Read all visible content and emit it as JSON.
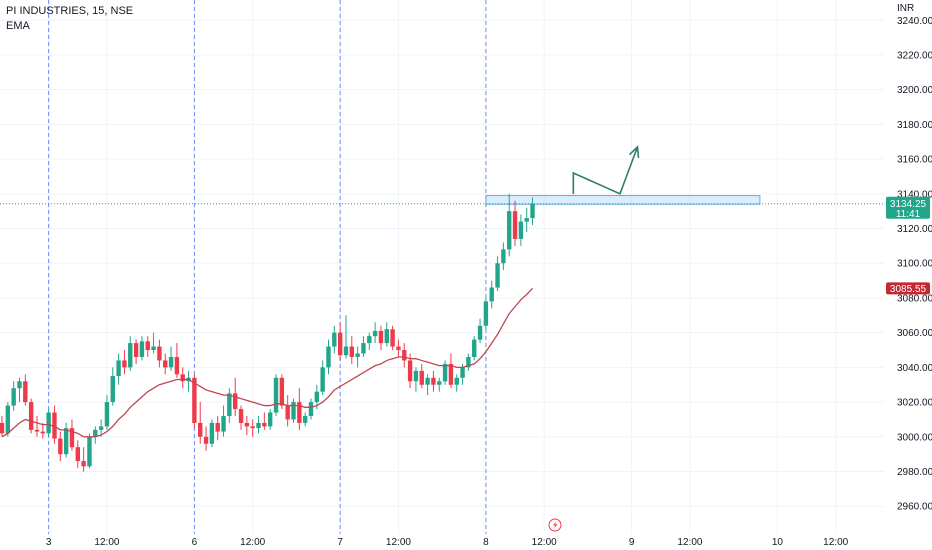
{
  "legend": {
    "title": "PI INDUSTRIES, 15, NSE",
    "indicator": "EMA"
  },
  "colors": {
    "up": "#22a68b",
    "down": "#ef3a4c",
    "ema": "#c2464f",
    "grid": "#f0f3fa",
    "session": "#2962ff",
    "zone_fill": "#bbdefb",
    "zone_border": "#64a8f0",
    "arrow": "#2f7d6b",
    "last_price_bg": "#22a68b",
    "ema_label_bg": "#c62832"
  },
  "chart_data": {
    "type": "candlestick",
    "title": "PI INDUSTRIES, 15, NSE",
    "currency": "INR",
    "ylim": [
      2944,
      3250
    ],
    "y_ticks": [
      3240,
      3220,
      3200,
      3180,
      3160,
      3140,
      3120,
      3100,
      3080,
      3060,
      3040,
      3020,
      3000,
      2980,
      2960
    ],
    "y_tick_labels": [
      "3240.00",
      "3220.00",
      "3200.00",
      "3180.00",
      "3160.00",
      "3140.00",
      "3120.00",
      "3100.00",
      "3080.00",
      "3060.00",
      "3040.00",
      "3020.00",
      "3000.00",
      "2980.00",
      "2960.00"
    ],
    "x_ticks": [
      {
        "label": "3",
        "index": 8,
        "session": true
      },
      {
        "label": "12:00",
        "index": 18,
        "session": false
      },
      {
        "label": "6",
        "index": 33,
        "session": true
      },
      {
        "label": "12:00",
        "index": 43,
        "session": false
      },
      {
        "label": "7",
        "index": 58,
        "session": true
      },
      {
        "label": "12:00",
        "index": 68,
        "session": false
      },
      {
        "label": "8",
        "index": 83,
        "session": true
      },
      {
        "label": "12:00",
        "index": 93,
        "session": false
      },
      {
        "label": "9",
        "index": 108,
        "session": false
      },
      {
        "label": "12:00",
        "index": 118,
        "session": false
      },
      {
        "label": "10",
        "index": 133,
        "session": false
      },
      {
        "label": "12:00",
        "index": 143,
        "session": false
      }
    ],
    "candles": [
      [
        3008,
        3012,
        3000,
        3002
      ],
      [
        3002,
        3020,
        3000,
        3018
      ],
      [
        3018,
        3032,
        3015,
        3028
      ],
      [
        3028,
        3034,
        3020,
        3032
      ],
      [
        3032,
        3036,
        3018,
        3020
      ],
      [
        3020,
        3022,
        3002,
        3004
      ],
      [
        3004,
        3012,
        3000,
        3003
      ],
      [
        3003,
        3008,
        2999,
        3002
      ],
      [
        3002,
        3016,
        3000,
        3014
      ],
      [
        3014,
        3018,
        2996,
        2999
      ],
      [
        2999,
        3003,
        2986,
        2990
      ],
      [
        2990,
        3008,
        2988,
        3005
      ],
      [
        3005,
        3010,
        2992,
        2994
      ],
      [
        2994,
        2998,
        2982,
        2986
      ],
      [
        2986,
        2994,
        2980,
        2983
      ],
      [
        2983,
        3002,
        2982,
        3000
      ],
      [
        3000,
        3006,
        2996,
        3004
      ],
      [
        3004,
        3010,
        3000,
        3006
      ],
      [
        3006,
        3024,
        3004,
        3020
      ],
      [
        3020,
        3040,
        3018,
        3035
      ],
      [
        3035,
        3048,
        3030,
        3044
      ],
      [
        3044,
        3050,
        3036,
        3040
      ],
      [
        3040,
        3058,
        3038,
        3054
      ],
      [
        3054,
        3056,
        3042,
        3046
      ],
      [
        3046,
        3058,
        3044,
        3055
      ],
      [
        3055,
        3058,
        3046,
        3050
      ],
      [
        3050,
        3060,
        3048,
        3052
      ],
      [
        3052,
        3056,
        3040,
        3044
      ],
      [
        3044,
        3048,
        3036,
        3040
      ],
      [
        3040,
        3052,
        3038,
        3046
      ],
      [
        3046,
        3054,
        3034,
        3036
      ],
      [
        3036,
        3040,
        3028,
        3032
      ],
      [
        3032,
        3038,
        3026,
        3034
      ],
      [
        3034,
        3036,
        3005,
        3008
      ],
      [
        3008,
        3020,
        2996,
        3000
      ],
      [
        3000,
        3006,
        2992,
        2996
      ],
      [
        2996,
        3010,
        2994,
        3008
      ],
      [
        3008,
        3012,
        2998,
        3003
      ],
      [
        3003,
        3018,
        3000,
        3012
      ],
      [
        3012,
        3028,
        3008,
        3025
      ],
      [
        3025,
        3034,
        3012,
        3016
      ],
      [
        3016,
        3018,
        3004,
        3008
      ],
      [
        3008,
        3012,
        3001,
        3006
      ],
      [
        3006,
        3010,
        3000,
        3005
      ],
      [
        3005,
        3012,
        3002,
        3008
      ],
      [
        3008,
        3014,
        3004,
        3006
      ],
      [
        3006,
        3016,
        3004,
        3014
      ],
      [
        3014,
        3036,
        3012,
        3034
      ],
      [
        3034,
        3036,
        3016,
        3018
      ],
      [
        3018,
        3024,
        3006,
        3010
      ],
      [
        3010,
        3022,
        3008,
        3020
      ],
      [
        3020,
        3028,
        3004,
        3008
      ],
      [
        3008,
        3014,
        3006,
        3012
      ],
      [
        3012,
        3022,
        3010,
        3020
      ],
      [
        3020,
        3030,
        3016,
        3026
      ],
      [
        3026,
        3044,
        3024,
        3040
      ],
      [
        3040,
        3056,
        3036,
        3052
      ],
      [
        3052,
        3064,
        3048,
        3060
      ],
      [
        3060,
        3066,
        3044,
        3047
      ],
      [
        3047,
        3070,
        3045,
        3052
      ],
      [
        3052,
        3058,
        3042,
        3046
      ],
      [
        3046,
        3052,
        3040,
        3048
      ],
      [
        3048,
        3058,
        3046,
        3054
      ],
      [
        3054,
        3060,
        3050,
        3058
      ],
      [
        3058,
        3066,
        3054,
        3061
      ],
      [
        3061,
        3064,
        3050,
        3054
      ],
      [
        3054,
        3066,
        3052,
        3062
      ],
      [
        3062,
        3064,
        3050,
        3052
      ],
      [
        3052,
        3056,
        3046,
        3050
      ],
      [
        3050,
        3054,
        3040,
        3044
      ],
      [
        3044,
        3048,
        3028,
        3032
      ],
      [
        3032,
        3040,
        3026,
        3038
      ],
      [
        3038,
        3042,
        3028,
        3030
      ],
      [
        3030,
        3036,
        3024,
        3034
      ],
      [
        3034,
        3038,
        3026,
        3030
      ],
      [
        3030,
        3034,
        3026,
        3032
      ],
      [
        3032,
        3044,
        3030,
        3042
      ],
      [
        3042,
        3048,
        3028,
        3030
      ],
      [
        3030,
        3036,
        3026,
        3034
      ],
      [
        3034,
        3042,
        3030,
        3040
      ],
      [
        3040,
        3048,
        3038,
        3046
      ],
      [
        3046,
        3058,
        3044,
        3056
      ],
      [
        3056,
        3068,
        3054,
        3064
      ],
      [
        3064,
        3080,
        3062,
        3078
      ],
      [
        3078,
        3090,
        3074,
        3086
      ],
      [
        3086,
        3104,
        3084,
        3100
      ],
      [
        3100,
        3112,
        3096,
        3108
      ],
      [
        3108,
        3140,
        3104,
        3130
      ],
      [
        3130,
        3136,
        3110,
        3114
      ],
      [
        3114,
        3128,
        3110,
        3124
      ],
      [
        3124,
        3132,
        3118,
        3126
      ],
      [
        3126,
        3138,
        3122,
        3134.25
      ]
    ],
    "ema": [
      3000,
      3002,
      3005,
      3008,
      3010,
      3009,
      3008,
      3007,
      3007,
      3006,
      3004,
      3004,
      3003,
      3002,
      3000,
      3000,
      3000,
      3001,
      3003,
      3006,
      3010,
      3013,
      3017,
      3020,
      3023,
      3026,
      3028,
      3030,
      3031,
      3032,
      3033,
      3033,
      3033,
      3031,
      3029,
      3027,
      3026,
      3025,
      3024,
      3024,
      3023,
      3022,
      3021,
      3020,
      3019,
      3018,
      3018,
      3019,
      3019,
      3018,
      3018,
      3018,
      3017,
      3017,
      3018,
      3020,
      3023,
      3027,
      3029,
      3031,
      3033,
      3035,
      3037,
      3039,
      3041,
      3042,
      3044,
      3045,
      3046,
      3046,
      3045,
      3045,
      3044,
      3043,
      3042,
      3041,
      3041,
      3041,
      3040,
      3040,
      3041,
      3042,
      3045,
      3049,
      3054,
      3059,
      3065,
      3071,
      3075,
      3079,
      3082,
      3085.55
    ],
    "last_price": {
      "value": 3134.25,
      "label": "3134.25",
      "countdown": "11:41"
    },
    "ema_last": {
      "value": 3085.55,
      "label": "3085.55"
    },
    "resistance_zone": {
      "from_index": 83,
      "to_index": 130,
      "low": 3134,
      "high": 3139
    },
    "projection_arrow": [
      {
        "index": 98,
        "price": 3140
      },
      {
        "index": 98,
        "price": 3152
      },
      {
        "index": 106,
        "price": 3140
      },
      {
        "index": 109,
        "price": 3167
      }
    ]
  },
  "footer": {
    "icon": "lightning-icon"
  }
}
